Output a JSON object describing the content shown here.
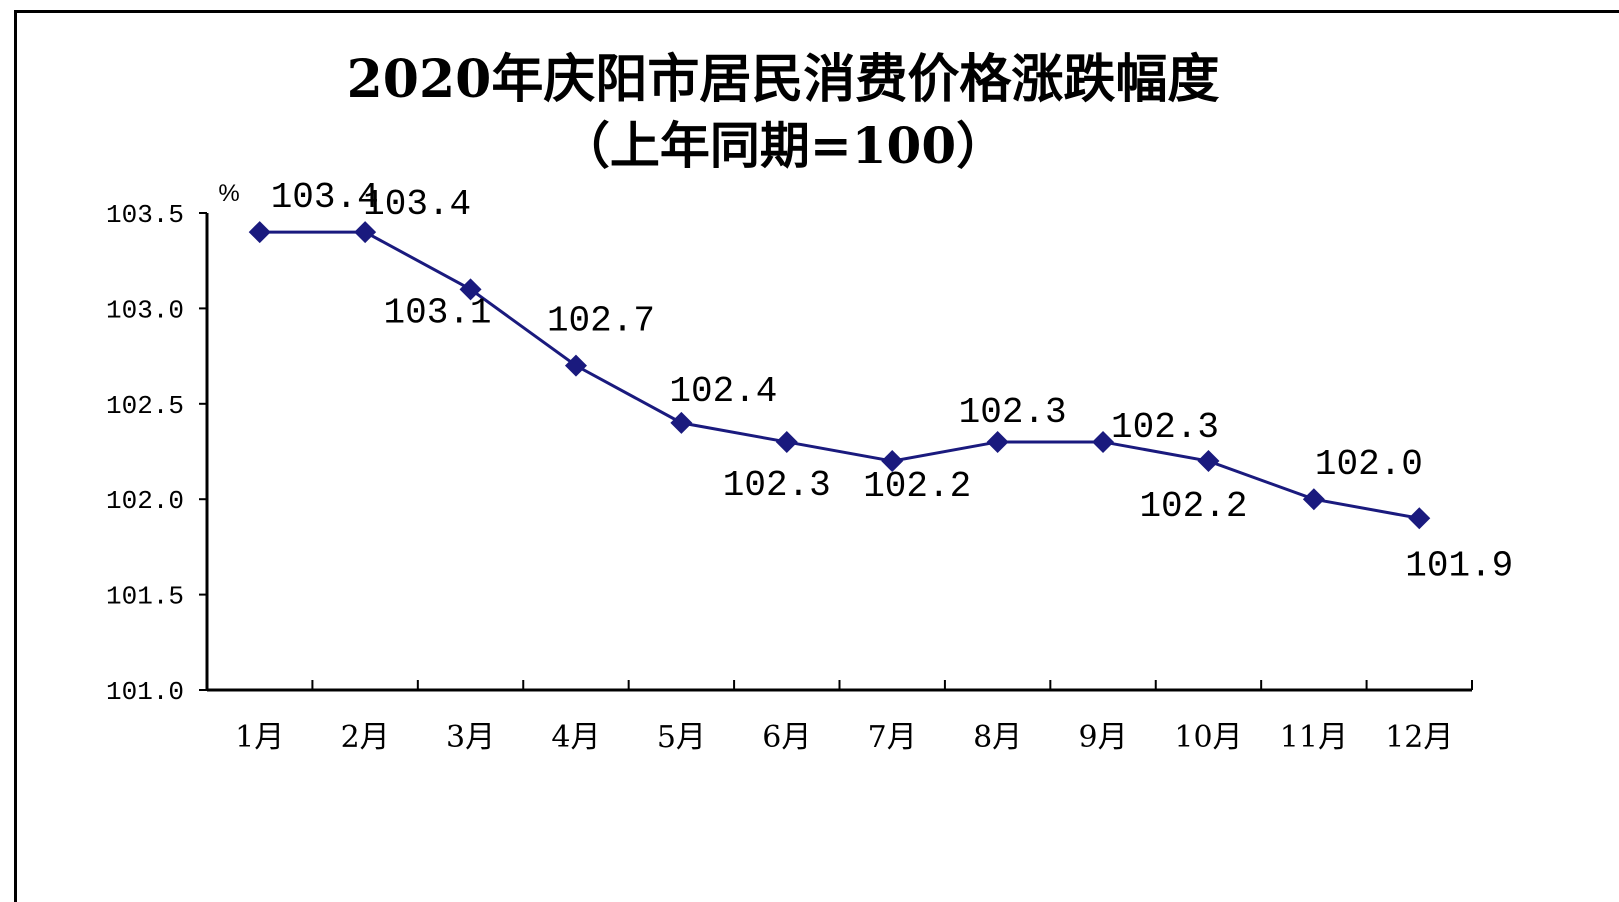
{
  "chart_data": {
    "type": "line",
    "title": "2020年庆阳市居民消费价格涨跌幅度",
    "subtitle": "（上年同期=100）",
    "unit_label": "%",
    "categories": [
      "1月",
      "2月",
      "3月",
      "4月",
      "5月",
      "6月",
      "7月",
      "8月",
      "9月",
      "10月",
      "11月",
      "12月"
    ],
    "series": [
      {
        "values": [
          103.4,
          103.4,
          103.1,
          102.7,
          102.4,
          102.3,
          102.2,
          102.3,
          102.3,
          102.2,
          102.0,
          101.9
        ]
      }
    ],
    "data_labels": [
      "103.4",
      "103.4",
      "103.1",
      "102.7",
      "102.4",
      "102.3",
      "102.2",
      "102.3",
      "102.3",
      "102.2",
      "102.0",
      "101.9"
    ],
    "ylim": [
      101.0,
      103.5
    ],
    "yticks": [
      "101.0",
      "101.5",
      "102.0",
      "102.5",
      "103.0",
      "103.5"
    ],
    "grid": false,
    "legend": "none",
    "line_color": "#1a1a7e"
  }
}
